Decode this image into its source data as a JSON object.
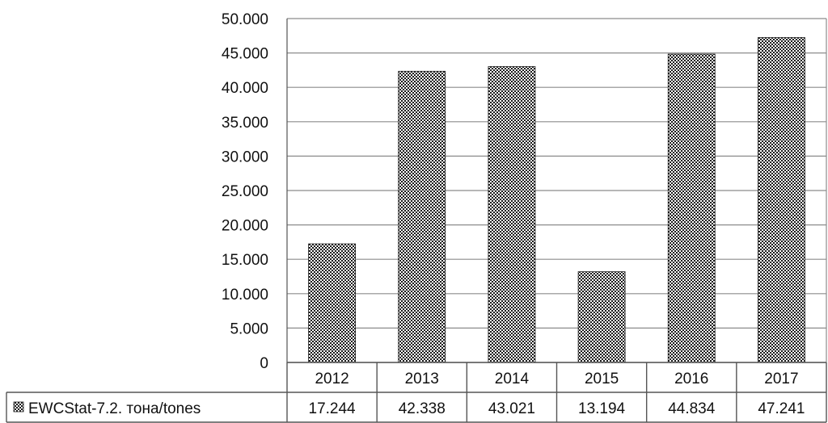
{
  "chart_data": {
    "type": "bar",
    "categories": [
      "2012",
      "2013",
      "2014",
      "2015",
      "2016",
      "2017"
    ],
    "series": [
      {
        "name": "EWCStat-7.2. тона/tones",
        "values": [
          17244,
          42338,
          43021,
          13194,
          44834,
          47241
        ],
        "value_labels": [
          "17.244",
          "42.338",
          "43.021",
          "13.194",
          "44.834",
          "47.241"
        ]
      }
    ],
    "ylim": [
      0,
      50000
    ],
    "yticks": [
      0,
      5000,
      10000,
      15000,
      20000,
      25000,
      30000,
      35000,
      40000,
      45000,
      50000
    ],
    "ytick_labels": [
      "0",
      "5.000",
      "10.000",
      "15.000",
      "20.000",
      "25.000",
      "30.000",
      "35.000",
      "40.000",
      "45.000",
      "50.000"
    ],
    "grid": true,
    "legend": "data-table",
    "fill_pattern": "checkered",
    "colors": {
      "bar_dark": "#1a1a1a",
      "bar_light": "#ffffff",
      "grid": "#8c8c8c",
      "axis": "#555555"
    }
  }
}
